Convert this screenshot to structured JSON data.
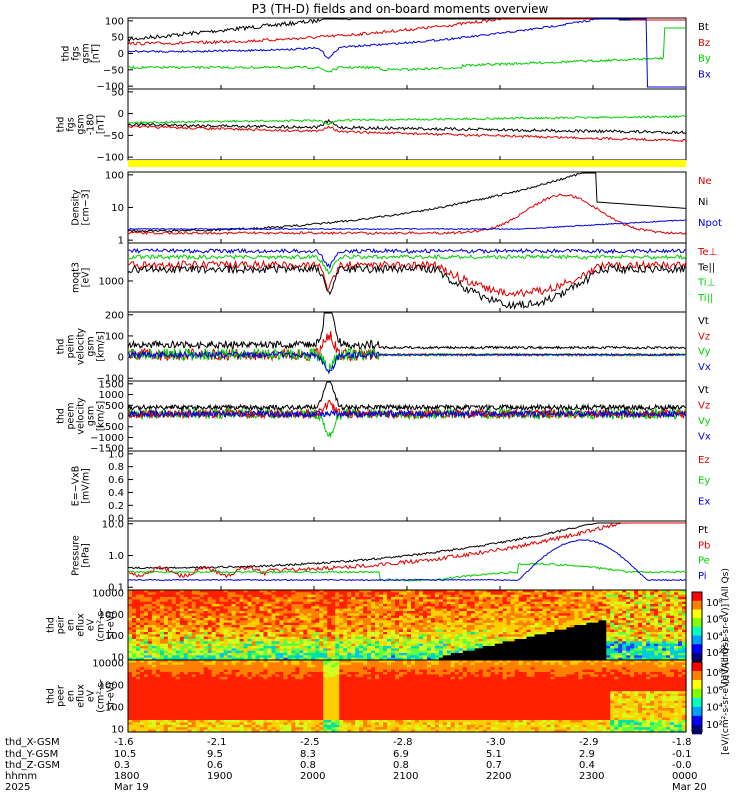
{
  "title": "P3 (TH-D) fields and on-board moments overview",
  "colors": {
    "black": "#000000",
    "red": "#e00000",
    "green": "#00d000",
    "blue": "#0000e0",
    "yellow": "#ffff00"
  },
  "chart_data": {
    "type": "line",
    "x_ticks": [
      "1800",
      "1900",
      "2000",
      "2100",
      "2200",
      "2300",
      "0000"
    ],
    "orbit_rows": [
      {
        "label": "thd_X-GSM",
        "values": [
          "-1.6",
          "-2.1",
          "-2.5",
          "-2.8",
          "-3.0",
          "-2.9",
          "-1.8"
        ]
      },
      {
        "label": "thd_Y-GSM",
        "values": [
          "10.5",
          "9.5",
          "8.3",
          "6.9",
          "5.1",
          "2.9",
          "-0.1"
        ]
      },
      {
        "label": "thd_Z-GSM",
        "values": [
          "0.3",
          "0.6",
          "0.8",
          "0.8",
          "0.7",
          "0.4",
          "-0.0"
        ]
      },
      {
        "label": "hhmm",
        "values": [
          "1800",
          "1900",
          "2000",
          "2100",
          "2200",
          "2300",
          "0000"
        ]
      },
      {
        "label": "2025",
        "values": [
          "Mar 19",
          "",
          "",
          "",
          "",
          "",
          "Mar 20"
        ]
      }
    ],
    "panels": [
      {
        "id": "fgs",
        "ylabel": [
          "thd",
          "fgs",
          "gsm",
          "[nT]"
        ],
        "yticks": [
          "100",
          "50",
          "0",
          "−50",
          "−100"
        ],
        "legend": [
          {
            "name": "Bt",
            "color": "black"
          },
          {
            "name": "Bz",
            "color": "red"
          },
          {
            "name": "By",
            "color": "green"
          },
          {
            "name": "Bx",
            "color": "blue"
          }
        ]
      },
      {
        "id": "fgs-dsl",
        "ylabel": [
          "thd",
          "fgs",
          "gsm",
          "-180",
          "[nT]"
        ],
        "yticks": [
          "50",
          "0",
          "−50",
          "−100"
        ],
        "legend": []
      },
      {
        "id": "density",
        "ylabel": [
          "Density",
          "[cm−3]"
        ],
        "yticks": [
          "100",
          "10",
          "1"
        ],
        "legend": [
          {
            "name": "Ne",
            "color": "red"
          },
          {
            "name": "Ni",
            "color": "black"
          },
          {
            "name": "Npot",
            "color": "blue"
          }
        ]
      },
      {
        "id": "temperature",
        "ylabel": [
          "moqt3",
          "[eV]"
        ],
        "yticks": [
          "1000"
        ],
        "legend": [
          {
            "name": "Te⊥",
            "color": "red"
          },
          {
            "name": "Te||",
            "color": "black"
          },
          {
            "name": "Ti⊥",
            "color": "green"
          },
          {
            "name": "Ti||",
            "color": "green"
          }
        ]
      },
      {
        "id": "peim",
        "ylabel": [
          "thd",
          "peim",
          "velocity",
          "gsm",
          "[km/s]"
        ],
        "yticks": [
          "200",
          "100",
          "0",
          "−100"
        ],
        "legend": [
          {
            "name": "Vt",
            "color": "black"
          },
          {
            "name": "Vz",
            "color": "red"
          },
          {
            "name": "Vy",
            "color": "green"
          },
          {
            "name": "Vx",
            "color": "blue"
          }
        ]
      },
      {
        "id": "peem",
        "ylabel": [
          "thd",
          "peem",
          "velocity",
          "gsm",
          "[km/s]"
        ],
        "yticks": [
          "1500",
          "1000",
          "500",
          "0",
          "−500",
          "−1000",
          "−1500"
        ],
        "legend": [
          {
            "name": "Vt",
            "color": "black"
          },
          {
            "name": "Vz",
            "color": "red"
          },
          {
            "name": "Vy",
            "color": "green"
          },
          {
            "name": "Vx",
            "color": "blue"
          }
        ]
      },
      {
        "id": "efield",
        "ylabel": [
          "E=−VxB",
          "[mV/m]"
        ],
        "yticks": [
          "1.0",
          "0.8",
          "0.6",
          "0.4",
          "0.2",
          "0.0"
        ],
        "legend": [
          {
            "name": "Ez",
            "color": "red"
          },
          {
            "name": "Ey",
            "color": "green"
          },
          {
            "name": "Ex",
            "color": "blue"
          }
        ]
      },
      {
        "id": "pressure",
        "ylabel": [
          "Pressure",
          "[nPa]"
        ],
        "yticks": [
          "10.0",
          "1.0",
          "0.1"
        ],
        "legend": [
          {
            "name": "Pt",
            "color": "black"
          },
          {
            "name": "Pb",
            "color": "red"
          },
          {
            "name": "Pe",
            "color": "green"
          },
          {
            "name": "Pi",
            "color": "blue"
          }
        ]
      },
      {
        "id": "peir",
        "ylabel": [
          "thd",
          "peir",
          "en",
          "eflux",
          "eV",
          "(cm²-s-",
          "sr-eV)"
        ],
        "yticks": [
          "10000",
          "1000",
          "100",
          "10"
        ],
        "legend": []
      },
      {
        "id": "peer",
        "ylabel": [
          "thd",
          "peer",
          "en",
          "eflux",
          "eV",
          "(cm²-s-",
          "sr-eV)"
        ],
        "yticks": [
          "10000",
          "1000",
          "100",
          "10"
        ],
        "legend": []
      }
    ],
    "colorbars": [
      {
        "ticks": [
          "10⁸",
          "10⁶",
          "10⁴",
          "10²"
        ],
        "label": "[eV/(cm²-s-sr-eV)] (All Qs)"
      },
      {
        "ticks": [
          "10⁸",
          "10⁶",
          "10⁴",
          "10²"
        ],
        "label": "[eV/(cm²-s-sr-eV)] (All Qs)"
      }
    ]
  }
}
